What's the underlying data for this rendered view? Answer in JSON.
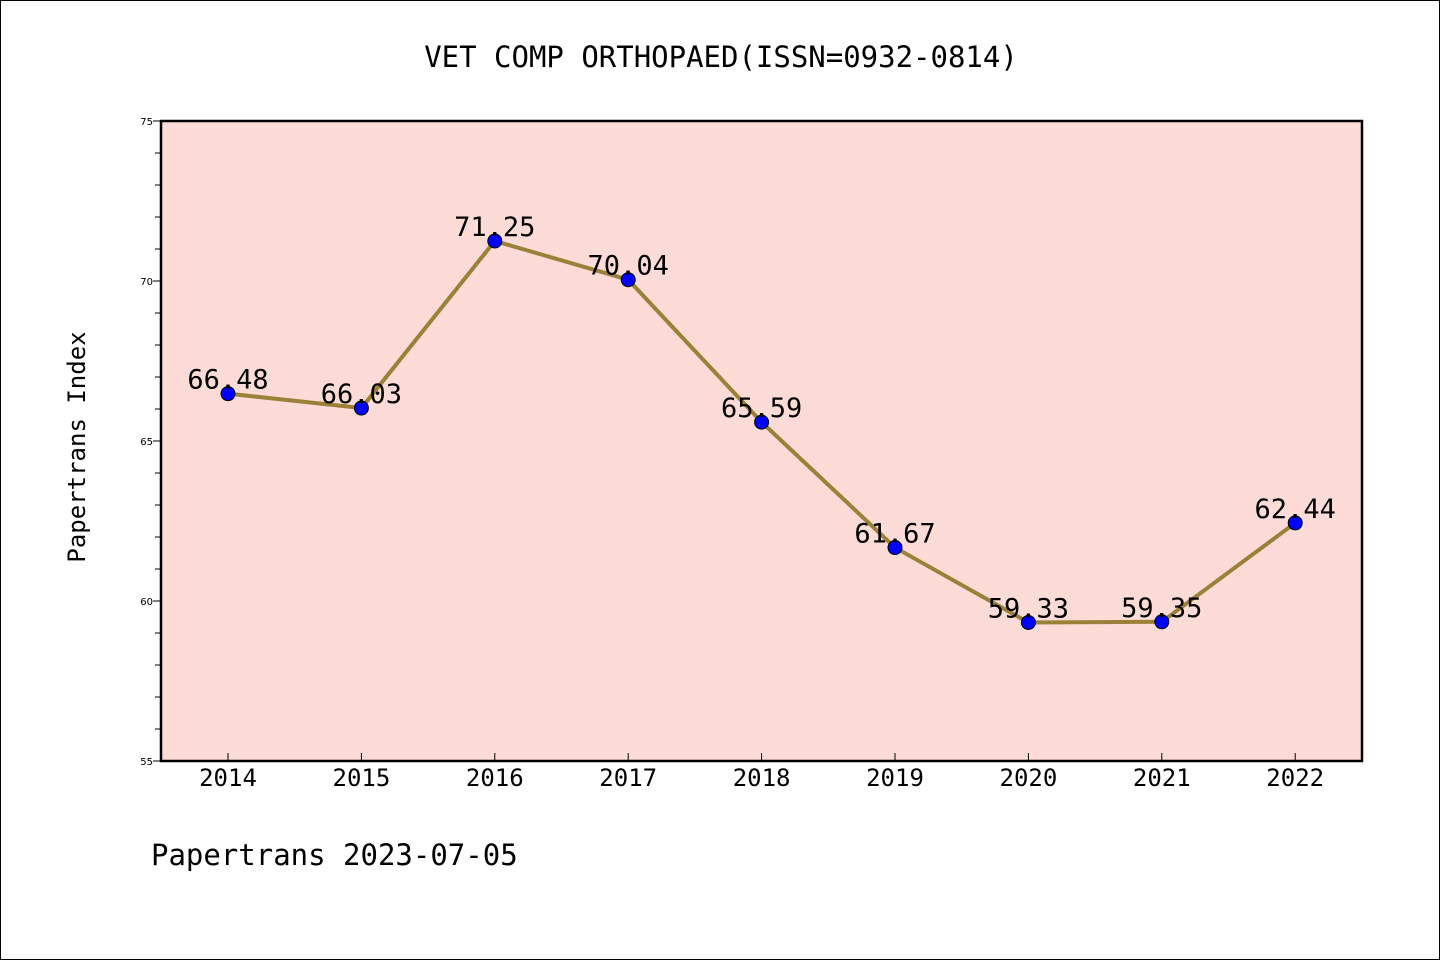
{
  "chart_data": {
    "type": "line",
    "title": "VET COMP ORTHOPAED(ISSN=0932-0814)",
    "xlabel": "",
    "ylabel": "Papertrans Index",
    "categories": [
      "2014",
      "2015",
      "2016",
      "2017",
      "2018",
      "2019",
      "2020",
      "2021",
      "2022"
    ],
    "series": [
      {
        "values": [
          66.48,
          66.03,
          71.25,
          70.04,
          65.59,
          61.67,
          59.33,
          59.35,
          62.44
        ],
        "labels": [
          "66.48",
          "66.03",
          "71.25",
          "70.04",
          "65.59",
          "61.67",
          "59.33",
          "59.35",
          "62.44"
        ]
      }
    ],
    "ylim": [
      55,
      75
    ],
    "yticks": [
      "55",
      "60",
      "65",
      "70",
      "75"
    ],
    "grid": false,
    "colors": {
      "plot_background": "#fddcd8",
      "line": "#9b8038",
      "marker": "#0000ff"
    }
  },
  "footer": "Papertrans 2023-07-05"
}
